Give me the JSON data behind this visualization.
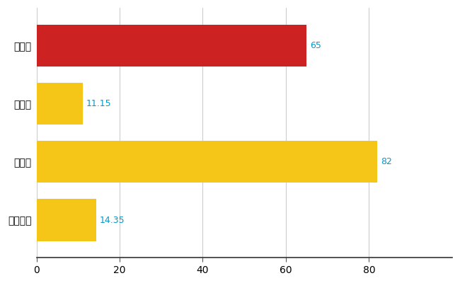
{
  "categories": [
    "弘前市",
    "県平均",
    "県最大",
    "全国平均"
  ],
  "values": [
    65,
    11.15,
    82,
    14.35
  ],
  "bar_colors": [
    "#cc2222",
    "#f5c518",
    "#f5c518",
    "#f5c518"
  ],
  "value_labels": [
    "65",
    "11.15",
    "82",
    "14.35"
  ],
  "value_label_color": "#0099cc",
  "xlim": [
    0,
    100
  ],
  "xticks": [
    0,
    20,
    40,
    60,
    80
  ],
  "background_color": "#ffffff",
  "grid_color": "#cccccc",
  "bar_height": 0.72,
  "figsize": [
    6.5,
    4.0
  ],
  "dpi": 100,
  "label_fontsize": 10,
  "tick_fontsize": 10,
  "value_fontsize": 9
}
